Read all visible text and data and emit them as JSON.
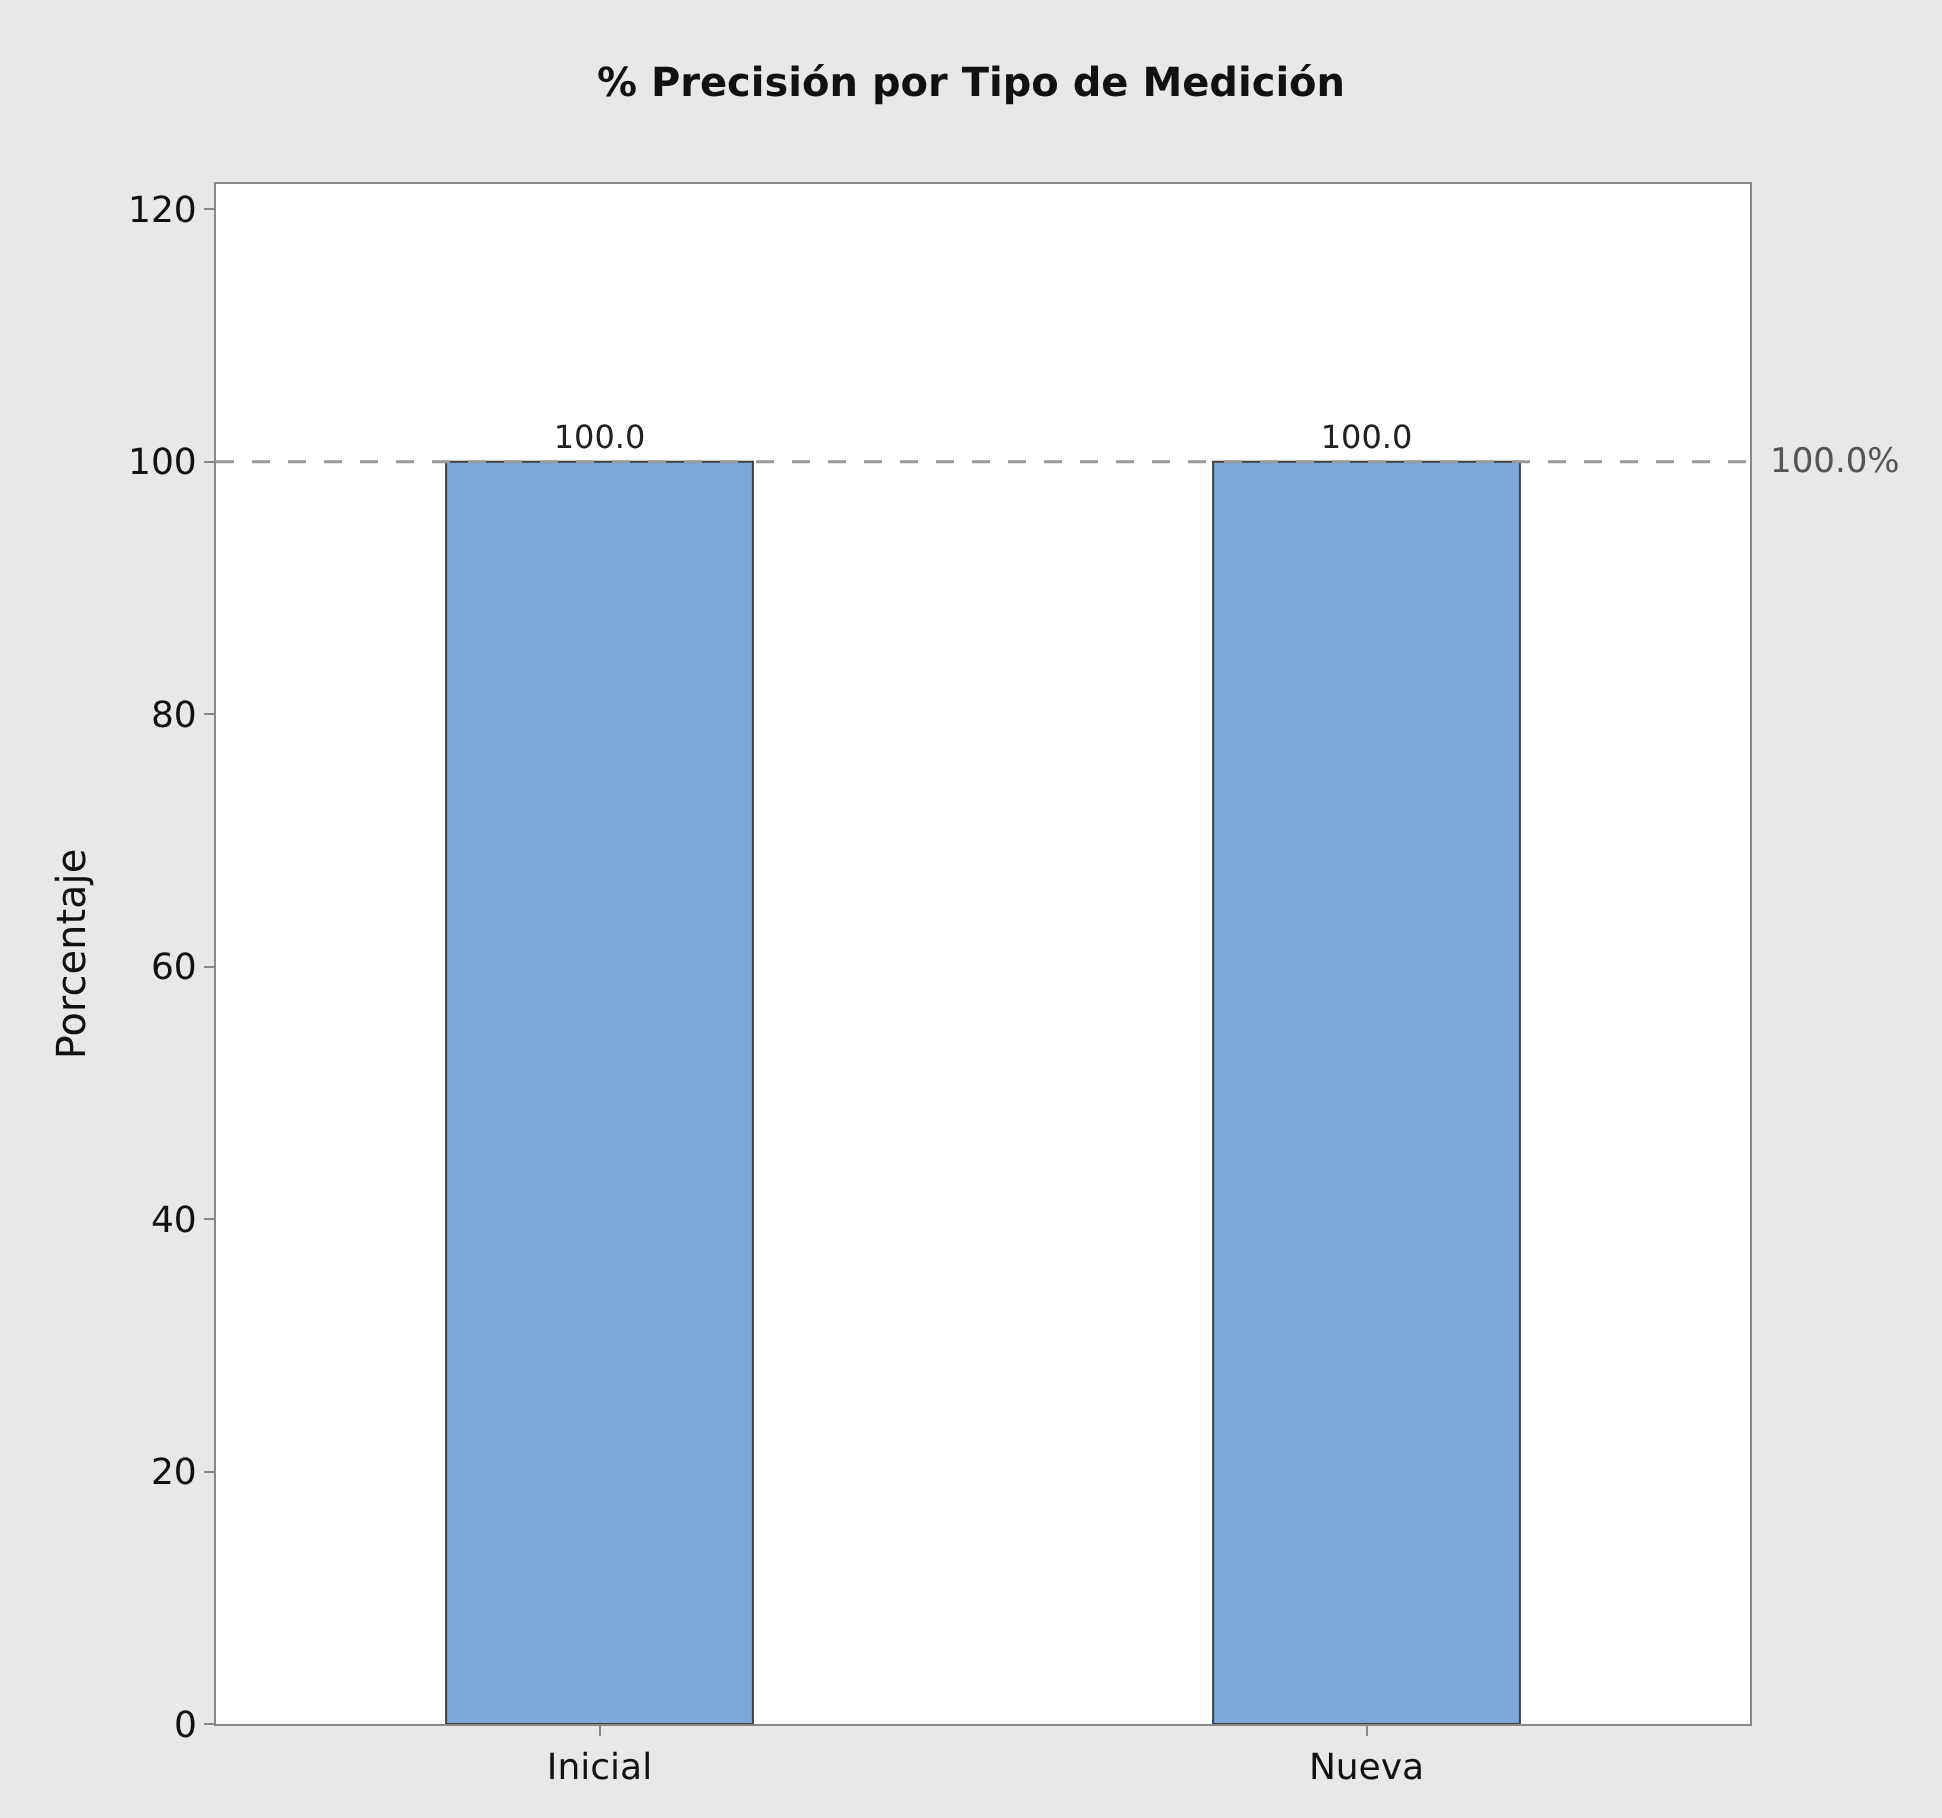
{
  "chart_data": {
    "type": "bar",
    "title": "% Precisión por Tipo de Medición",
    "ylabel": "Porcentaje",
    "categories": [
      "Inicial",
      "Nueva"
    ],
    "values": [
      100,
      100
    ],
    "value_labels": [
      "100.0",
      "100.0"
    ],
    "color": "#7ba7d9",
    "ylim": [
      0,
      122
    ],
    "yticks": [
      0,
      20,
      40,
      60,
      80,
      100,
      120
    ],
    "legend": false,
    "ref_lines": [
      {
        "axis": "y",
        "value": 100,
        "label": "100.0%",
        "color": "#999999",
        "line_style": "dashed"
      }
    ]
  }
}
